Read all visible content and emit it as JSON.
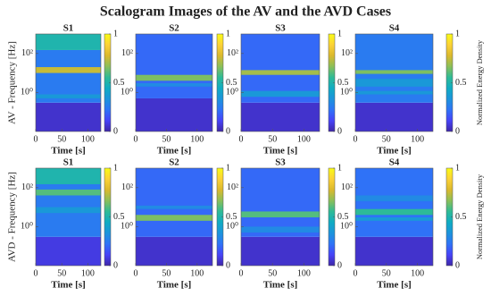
{
  "chart_data": {
    "type": "heatmap",
    "title": "Scalogram Images of the AV and the AVD Cases",
    "colormap": [
      "#3e26a8",
      "#4743f8",
      "#2f73f7",
      "#1c94dc",
      "#10acc3",
      "#2fbb96",
      "#8bbf59",
      "#dbb92d",
      "#fcd237",
      "#f9fb15"
    ],
    "rows": [
      {
        "ylabel": "AV - Frequency [Hz]",
        "panels": [
          {
            "title": "S1",
            "bands": [
              {
                "from": 0.01,
                "to": 0.3,
                "value": 0.05
              },
              {
                "from": 0.3,
                "to": 150,
                "value": 0.25
              },
              {
                "from": 150,
                "to": 1000,
                "value": 0.5
              },
              {
                "from": 10,
                "to": 20,
                "value": 0.75
              },
              {
                "from": 0.5,
                "to": 0.8,
                "value": 0.35
              }
            ]
          },
          {
            "title": "S2",
            "bands": [
              {
                "from": 0.01,
                "to": 0.5,
                "value": 0.05
              },
              {
                "from": 0.5,
                "to": 1000,
                "value": 0.2
              },
              {
                "from": 4,
                "to": 8,
                "value": 0.65
              },
              {
                "from": 2,
                "to": 3,
                "value": 0.3
              }
            ]
          },
          {
            "title": "S3",
            "bands": [
              {
                "from": 0.01,
                "to": 0.3,
                "value": 0.05
              },
              {
                "from": 0.3,
                "to": 1000,
                "value": 0.2
              },
              {
                "from": 8,
                "to": 14,
                "value": 0.7
              },
              {
                "from": 0.6,
                "to": 1.2,
                "value": 0.35
              }
            ]
          },
          {
            "title": "S4",
            "bands": [
              {
                "from": 0.01,
                "to": 0.3,
                "value": 0.05
              },
              {
                "from": 0.3,
                "to": 1000,
                "value": 0.25
              },
              {
                "from": 9,
                "to": 14,
                "value": 0.65
              },
              {
                "from": 2,
                "to": 5,
                "value": 0.35
              },
              {
                "from": 0.8,
                "to": 1.2,
                "value": 0.35
              }
            ]
          }
        ]
      },
      {
        "ylabel": "AVD - Frequency [Hz]",
        "panels": [
          {
            "title": "S1",
            "bands": [
              {
                "from": 0.01,
                "to": 0.3,
                "value": 0.08
              },
              {
                "from": 0.3,
                "to": 1000,
                "value": 0.25
              },
              {
                "from": 150,
                "to": 1000,
                "value": 0.5
              },
              {
                "from": 40,
                "to": 80,
                "value": 0.6
              },
              {
                "from": 5,
                "to": 10,
                "value": 0.35
              }
            ]
          },
          {
            "title": "S2",
            "bands": [
              {
                "from": 0.01,
                "to": 0.3,
                "value": 0.05
              },
              {
                "from": 0.3,
                "to": 1000,
                "value": 0.2
              },
              {
                "from": 2,
                "to": 4,
                "value": 0.65
              },
              {
                "from": 8,
                "to": 12,
                "value": 0.3
              }
            ]
          },
          {
            "title": "S3",
            "bands": [
              {
                "from": 0.01,
                "to": 0.3,
                "value": 0.05
              },
              {
                "from": 0.3,
                "to": 1000,
                "value": 0.2
              },
              {
                "from": 3,
                "to": 6,
                "value": 0.6
              },
              {
                "from": 0.5,
                "to": 1,
                "value": 0.3
              }
            ]
          },
          {
            "title": "S4",
            "bands": [
              {
                "from": 0.01,
                "to": 0.3,
                "value": 0.05
              },
              {
                "from": 0.3,
                "to": 1000,
                "value": 0.22
              },
              {
                "from": 4,
                "to": 8,
                "value": 0.55
              },
              {
                "from": 2,
                "to": 3,
                "value": 0.35
              },
              {
                "from": 20,
                "to": 40,
                "value": 0.3
              }
            ]
          }
        ]
      }
    ],
    "xlabel": "Time [s]",
    "xlim": [
      0,
      125
    ],
    "xticks": [
      0,
      50,
      100
    ],
    "ylim": [
      0.01,
      1000
    ],
    "log_y": true,
    "yticks": [
      {
        "value": 1,
        "label": "10⁰"
      },
      {
        "value": 100,
        "label": "10²"
      }
    ],
    "clim": [
      0,
      1
    ],
    "cticks": [
      0,
      0.5,
      1
    ],
    "colorbar_label": "Normalized Energy Density"
  }
}
